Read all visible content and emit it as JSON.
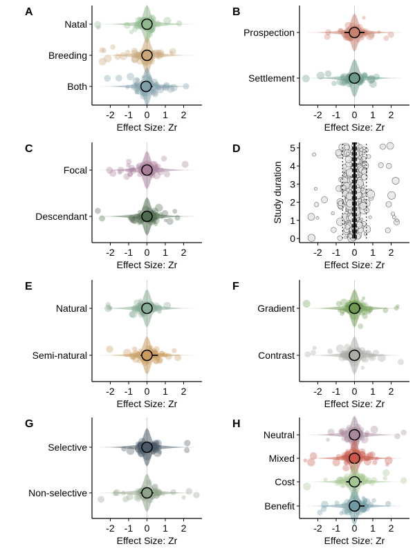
{
  "chart_data": [
    {
      "panel": "A",
      "type": "scatter",
      "subtype": "orchard",
      "xlabel": "Effect Size: Zr",
      "xlim": [
        -3,
        3
      ],
      "xticks": [
        -2,
        -1,
        0,
        1,
        2
      ],
      "categories": [
        {
          "label": "Natal",
          "estimate": 0.0,
          "ci": [
            -0.25,
            0.25
          ],
          "color": "#8fb98c"
        },
        {
          "label": "Breeding",
          "estimate": 0.0,
          "ci": [
            -0.3,
            0.3
          ],
          "color": "#c9a877"
        },
        {
          "label": "Both",
          "estimate": -0.05,
          "ci": [
            -0.35,
            0.3
          ],
          "color": "#7e9fa8"
        }
      ]
    },
    {
      "panel": "B",
      "type": "scatter",
      "subtype": "orchard",
      "xlabel": "Effect Size: Zr",
      "xlim": [
        -3,
        3
      ],
      "xticks": [
        -2,
        -1,
        0,
        1,
        2
      ],
      "categories": [
        {
          "label": "Prospection",
          "estimate": 0.0,
          "ci": [
            -0.55,
            0.55
          ],
          "color": "#c9826e"
        },
        {
          "label": "Settlement",
          "estimate": 0.0,
          "ci": [
            -0.3,
            0.3
          ],
          "color": "#6b9a8c"
        }
      ]
    },
    {
      "panel": "C",
      "type": "scatter",
      "subtype": "orchard",
      "xlabel": "Effect Size: Zr",
      "xlim": [
        -3,
        3
      ],
      "xticks": [
        -2,
        -1,
        0,
        1,
        2
      ],
      "categories": [
        {
          "label": "Focal",
          "estimate": 0.0,
          "ci": [
            -0.3,
            0.3
          ],
          "color": "#a87e9a"
        },
        {
          "label": "Descendant",
          "estimate": 0.0,
          "ci": [
            -0.25,
            0.25
          ],
          "color": "#4d6b4d"
        }
      ]
    },
    {
      "panel": "D",
      "type": "scatter",
      "subtype": "meta-regression",
      "xlabel": "Effect Size: Zr",
      "ylabel": "Study duration",
      "xlim": [
        -3,
        3
      ],
      "xticks": [
        -2,
        -1,
        0,
        1,
        2
      ],
      "ylim": [
        0,
        5.3
      ],
      "yticks": [
        0,
        1,
        2,
        3,
        4,
        5
      ]
    },
    {
      "panel": "E",
      "type": "scatter",
      "subtype": "orchard",
      "xlabel": "Effect Size: Zr",
      "xlim": [
        -3,
        3
      ],
      "xticks": [
        -2,
        -1,
        0,
        1,
        2
      ],
      "categories": [
        {
          "label": "Natural",
          "estimate": 0.0,
          "ci": [
            -0.25,
            0.25
          ],
          "color": "#86ad96"
        },
        {
          "label": "Semi-natural",
          "estimate": 0.0,
          "ci": [
            -0.35,
            0.6
          ],
          "color": "#c99a5c"
        }
      ]
    },
    {
      "panel": "F",
      "type": "scatter",
      "subtype": "orchard",
      "xlabel": "Effect Size: Zr",
      "xlim": [
        -3,
        3
      ],
      "xticks": [
        -2,
        -1,
        0,
        1,
        2
      ],
      "categories": [
        {
          "label": "Gradient",
          "estimate": 0.0,
          "ci": [
            -0.3,
            0.35
          ],
          "color": "#6f9a4f"
        },
        {
          "label": "Contrast",
          "estimate": 0.0,
          "ci": [
            -0.3,
            0.3
          ],
          "color": "#a9ada5"
        }
      ]
    },
    {
      "panel": "G",
      "type": "scatter",
      "subtype": "orchard",
      "xlabel": "Effect Size: Zr",
      "xlim": [
        -3,
        3
      ],
      "xticks": [
        -2,
        -1,
        0,
        1,
        2
      ],
      "categories": [
        {
          "label": "Selective",
          "estimate": 0.0,
          "ci": [
            -0.3,
            0.3
          ],
          "color": "#4a5a66"
        },
        {
          "label": "Non-selective",
          "estimate": 0.0,
          "ci": [
            -0.35,
            0.35
          ],
          "color": "#8fa389"
        }
      ]
    },
    {
      "panel": "H",
      "type": "scatter",
      "subtype": "orchard",
      "xlabel": "Effect Size: Zr",
      "xlim": [
        -3,
        3
      ],
      "xticks": [
        -2,
        -1,
        0,
        1,
        2
      ],
      "categories": [
        {
          "label": "Neutral",
          "estimate": 0.0,
          "ci": [
            -0.3,
            0.3
          ],
          "color": "#a88a9e"
        },
        {
          "label": "Mixed",
          "estimate": 0.0,
          "ci": [
            -0.3,
            0.3
          ],
          "color": "#c9584a"
        },
        {
          "label": "Cost",
          "estimate": 0.0,
          "ci": [
            -0.45,
            0.4
          ],
          "color": "#a3c790"
        },
        {
          "label": "Benefit",
          "estimate": 0.0,
          "ci": [
            -0.2,
            0.55
          ],
          "color": "#6f9aa3"
        }
      ]
    }
  ]
}
